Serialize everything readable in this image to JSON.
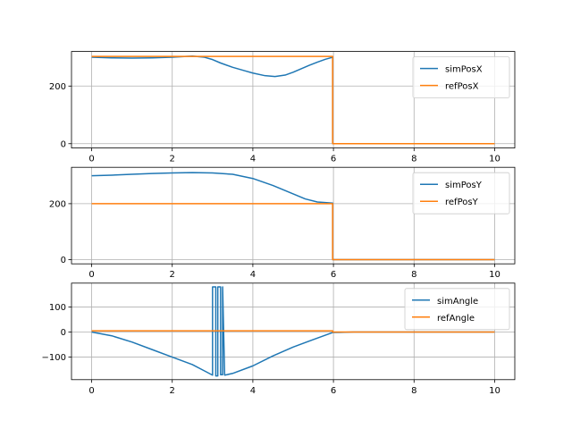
{
  "chart_data": [
    {
      "type": "line",
      "title": "",
      "xlabel": "",
      "ylabel": "",
      "xlim": [
        -0.5,
        10.5
      ],
      "ylim": [
        -15,
        320
      ],
      "xticks": [
        0,
        2,
        4,
        6,
        8,
        10
      ],
      "yticks": [
        0,
        200
      ],
      "grid": true,
      "legend_position": "upper-right",
      "series": [
        {
          "name": "simPosX",
          "color": "#1f77b4",
          "x": [
            0,
            0.5,
            1.0,
            1.5,
            2.0,
            2.5,
            2.8,
            3.0,
            3.2,
            3.5,
            3.8,
            4.0,
            4.3,
            4.55,
            4.8,
            5.0,
            5.2,
            5.4,
            5.6,
            5.8,
            5.98,
            5.98,
            6.5,
            7.0,
            8.0,
            9.0,
            10.0
          ],
          "y": [
            300,
            298,
            297,
            298,
            300,
            304,
            300,
            292,
            280,
            265,
            253,
            245,
            236,
            233,
            238,
            248,
            260,
            272,
            283,
            293,
            300,
            0,
            0,
            0,
            0,
            0,
            0
          ]
        },
        {
          "name": "refPosX",
          "color": "#ff7f0e",
          "x": [
            0,
            5.98,
            5.98,
            10.0
          ],
          "y": [
            303,
            303,
            0,
            0
          ]
        }
      ]
    },
    {
      "type": "line",
      "title": "",
      "xlabel": "",
      "ylabel": "",
      "xlim": [
        -0.5,
        10.5
      ],
      "ylim": [
        -15,
        330
      ],
      "xticks": [
        0,
        2,
        4,
        6,
        8,
        10
      ],
      "yticks": [
        0,
        200
      ],
      "grid": true,
      "legend_position": "upper-right",
      "series": [
        {
          "name": "simPosY",
          "color": "#1f77b4",
          "x": [
            0,
            0.5,
            1.0,
            1.5,
            2.0,
            2.5,
            3.0,
            3.5,
            4.0,
            4.5,
            5.0,
            5.3,
            5.6,
            5.98,
            5.98,
            6.5,
            8.0,
            10.0
          ],
          "y": [
            300,
            302,
            305,
            308,
            310,
            311,
            310,
            305,
            290,
            265,
            235,
            217,
            206,
            202,
            0,
            0,
            0,
            0
          ]
        },
        {
          "name": "refPosY",
          "color": "#ff7f0e",
          "x": [
            0,
            5.98,
            5.98,
            10.0
          ],
          "y": [
            200,
            200,
            0,
            0
          ]
        }
      ]
    },
    {
      "type": "line",
      "title": "",
      "xlabel": "",
      "ylabel": "",
      "xlim": [
        -0.5,
        10.5
      ],
      "ylim": [
        -190,
        195
      ],
      "xticks": [
        0,
        2,
        4,
        6,
        8,
        10
      ],
      "yticks": [
        -100,
        0,
        100
      ],
      "grid": true,
      "legend_position": "upper-right",
      "series": [
        {
          "name": "simAngle",
          "color": "#1f77b4",
          "x": [
            0,
            0.5,
            1.0,
            1.5,
            2.0,
            2.5,
            2.8,
            3.0,
            3.0,
            3.08,
            3.08,
            3.13,
            3.13,
            3.2,
            3.2,
            3.25,
            3.25,
            3.3,
            3.5,
            4.0,
            4.5,
            5.0,
            5.5,
            5.98,
            6.5,
            8.0,
            10.0
          ],
          "y": [
            0,
            -15,
            -40,
            -70,
            -100,
            -130,
            -155,
            -172,
            180,
            180,
            -175,
            -175,
            180,
            180,
            -170,
            -170,
            180,
            -172,
            -165,
            -135,
            -95,
            -60,
            -30,
            -2,
            0,
            0,
            0
          ]
        },
        {
          "name": "refAngle",
          "color": "#ff7f0e",
          "x": [
            0,
            5.98,
            5.98,
            10.0
          ],
          "y": [
            5,
            5,
            0,
            0
          ]
        }
      ]
    }
  ]
}
